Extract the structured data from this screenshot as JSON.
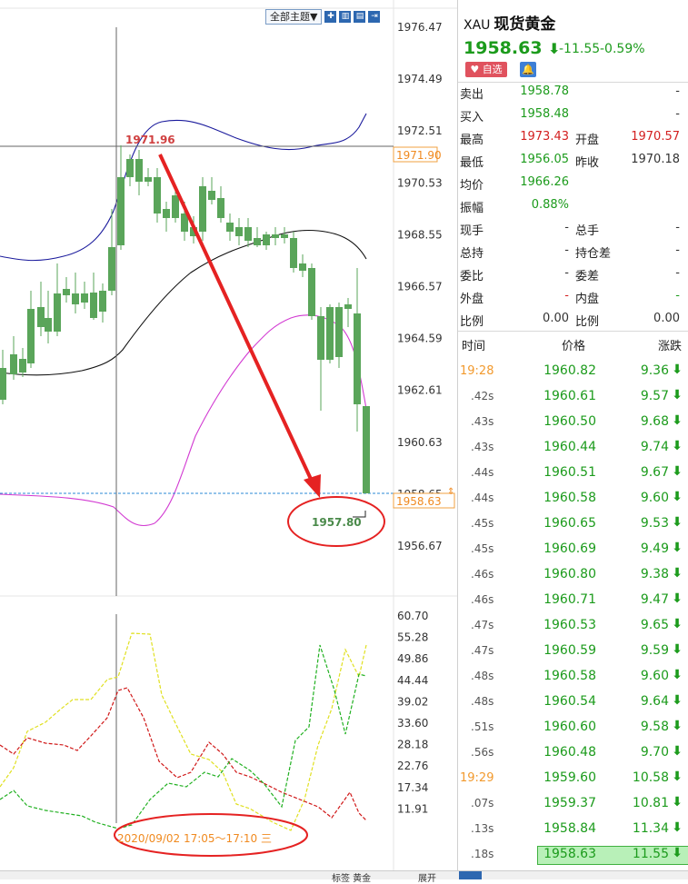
{
  "toolbar": {
    "theme_label": "全部主题▼",
    "icons": [
      "add-icon",
      "compare-icon",
      "layout-icon",
      "export-icon"
    ]
  },
  "chart": {
    "price_axis": [
      "1976.47",
      "1974.49",
      "1972.51",
      "1970.53",
      "1968.55",
      "1966.57",
      "1964.59",
      "1962.61",
      "1960.63",
      "1958.65",
      "1956.67"
    ],
    "indicator_axis": [
      "60.70",
      "55.28",
      "49.86",
      "44.44",
      "39.02",
      "33.60",
      "28.18",
      "22.76",
      "17.34",
      "11.91"
    ],
    "crosshair_price": "1971.90",
    "current_price_tag": "1958.63",
    "high_label": "1971.96",
    "low_label": "1957.80",
    "time_label": "2020/09/02 17:05～17:10 三",
    "colors": {
      "up": "#cc1010",
      "down": "#5aa55a",
      "upper_band": "#1a1a9c",
      "middle_band": "#111111",
      "lower_band": "#d23ad2",
      "arrow": "#e52222",
      "ellipse": "#e52222",
      "k_line": "#e0e020",
      "d_line": "#d01818",
      "j_line": "#20b020"
    }
  },
  "quote": {
    "symbol": "XAU",
    "name": "现货黄金",
    "price": "1958.63",
    "change": "-11.55",
    "change_pct": "-0.59%",
    "fav_label": "自选",
    "rows": [
      {
        "l1": "卖出",
        "v1": "1958.78",
        "l2": "",
        "v2": "-"
      },
      {
        "l1": "买入",
        "v1": "1958.48",
        "l2": "",
        "v2": "-"
      },
      {
        "l1": "最高",
        "v1": "1973.43",
        "l2": "开盘",
        "v2": "1970.57"
      },
      {
        "l1": "最低",
        "v1": "1956.05",
        "l2": "昨收",
        "v2": "1970.18"
      },
      {
        "l1": "均价",
        "v1": "1966.26",
        "l2": "",
        "v2": ""
      },
      {
        "l1": "振幅",
        "v1": "0.88%",
        "l2": "",
        "v2": ""
      },
      {
        "l1": "现手",
        "v1": "-",
        "l2": "总手",
        "v2": "-"
      },
      {
        "l1": "总持",
        "v1": "-",
        "l2": "持仓差",
        "v2": "-"
      },
      {
        "l1": "委比",
        "v1": "-",
        "l2": "委差",
        "v2": "-"
      },
      {
        "l1": "外盘",
        "v1": "-",
        "l2": "内盘",
        "v2": "-"
      },
      {
        "l1": "比例",
        "v1": "0.00",
        "l2": "比例",
        "v2": "0.00"
      }
    ],
    "tick_header": {
      "time": "时间",
      "price": "价格",
      "change": "涨跌"
    },
    "ticks": [
      {
        "time": "19:28",
        "price": "1960.82",
        "change": "9.36"
      },
      {
        "time": ".42s",
        "price": "1960.61",
        "change": "9.57"
      },
      {
        "time": ".43s",
        "price": "1960.50",
        "change": "9.68"
      },
      {
        "time": ".43s",
        "price": "1960.44",
        "change": "9.74"
      },
      {
        "time": ".44s",
        "price": "1960.51",
        "change": "9.67"
      },
      {
        "time": ".44s",
        "price": "1960.58",
        "change": "9.60"
      },
      {
        "time": ".45s",
        "price": "1960.65",
        "change": "9.53"
      },
      {
        "time": ".45s",
        "price": "1960.69",
        "change": "9.49"
      },
      {
        "time": ".46s",
        "price": "1960.80",
        "change": "9.38"
      },
      {
        "time": ".46s",
        "price": "1960.71",
        "change": "9.47"
      },
      {
        "time": ".47s",
        "price": "1960.53",
        "change": "9.65"
      },
      {
        "time": ".47s",
        "price": "1960.59",
        "change": "9.59"
      },
      {
        "time": ".48s",
        "price": "1960.58",
        "change": "9.60"
      },
      {
        "time": ".48s",
        "price": "1960.54",
        "change": "9.64"
      },
      {
        "time": ".51s",
        "price": "1960.60",
        "change": "9.58"
      },
      {
        "time": ".56s",
        "price": "1960.48",
        "change": "9.70"
      },
      {
        "time": "19:29",
        "price": "1959.60",
        "change": "10.58"
      },
      {
        "time": ".07s",
        "price": "1959.37",
        "change": "10.81"
      },
      {
        "time": ".13s",
        "price": "1958.84",
        "change": "11.34"
      },
      {
        "time": ".18s",
        "price": "1958.63",
        "change": "11.55"
      }
    ]
  },
  "bottom": {
    "label": "标签 黄金",
    "btn": "展开"
  }
}
